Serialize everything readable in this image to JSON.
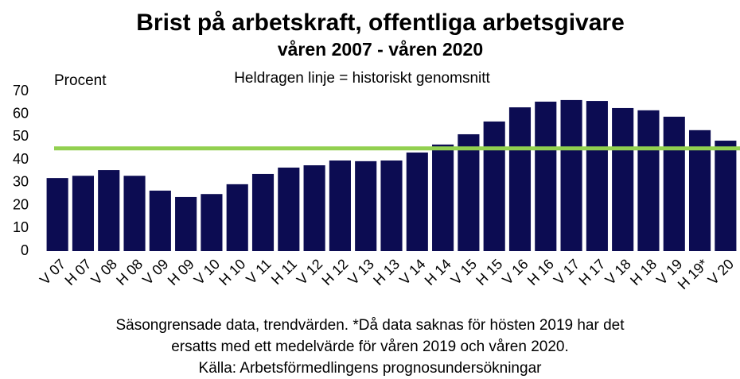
{
  "chart_data": {
    "type": "bar",
    "title": "Brist på arbetskraft, offentliga arbetsgivare",
    "subtitle": "våren 2007 - våren 2020",
    "ylabel": "Procent",
    "categories": [
      "V 07",
      "H 07",
      "V 08",
      "H 08",
      "V 09",
      "H 09",
      "V 10",
      "H 10",
      "V 11",
      "H 11",
      "V 12",
      "H 12",
      "V 13",
      "H 13",
      "V 14",
      "H 14",
      "V 15",
      "H 15",
      "V 16",
      "H 16",
      "V 17",
      "H 17",
      "V 18",
      "H 18",
      "V 19",
      "H 19*",
      "V 20"
    ],
    "values": [
      32,
      33,
      35.5,
      33,
      26.5,
      23.7,
      25,
      29.3,
      33.8,
      36.6,
      37.6,
      39.7,
      39.4,
      39.7,
      43.2,
      46.7,
      51.2,
      56.8,
      63,
      65.5,
      66.2,
      65.8,
      62.7,
      61.7,
      58.9,
      53,
      48.4
    ],
    "color": "#0c0c52",
    "reference_line": {
      "value": 45,
      "color": "#92d050",
      "label": "Heldragen linje = historiskt genomsnitt"
    },
    "ylim": [
      0,
      70
    ],
    "yticks": [
      0,
      10,
      20,
      30,
      40,
      50,
      60,
      70
    ],
    "grid": false,
    "notes": [
      "Säsongrensade data, trendvärden. *Då data saknas för hösten 2019 har det",
      "ersatts med ett medelvärde för våren 2019 och våren 2020.",
      "Källa: Arbetsförmedlingens prognosundersökningar"
    ]
  }
}
